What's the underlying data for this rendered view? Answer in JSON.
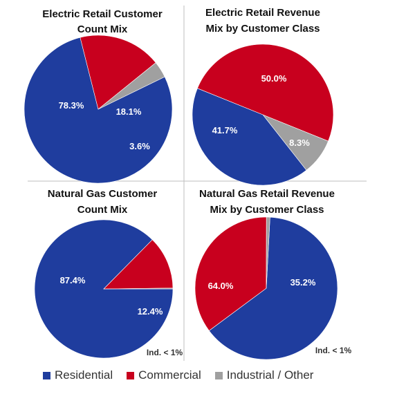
{
  "colors": {
    "residential": "#1F3D9E",
    "commercial": "#C8001E",
    "industrial": "#A0A0A0"
  },
  "legend": [
    {
      "label": "Residential",
      "color_key": "residential"
    },
    {
      "label": "Commercial",
      "color_key": "commercial"
    },
    {
      "label": "Industrial / Other",
      "color_key": "industrial"
    }
  ],
  "chart_data": [
    {
      "type": "pie",
      "title_lines": [
        "Electric Retail Customer",
        "Count Mix"
      ],
      "slices": [
        {
          "name": "Residential",
          "value": 78.3,
          "label": "78.3%",
          "color_key": "residential"
        },
        {
          "name": "Commercial",
          "value": 18.1,
          "label": "18.1%",
          "color_key": "commercial"
        },
        {
          "name": "Industrial / Other",
          "value": 3.6,
          "label": "3.6%",
          "color_key": "industrial"
        }
      ]
    },
    {
      "type": "pie",
      "title_lines": [
        "Electric Retail Revenue",
        "Mix by Customer Class"
      ],
      "slices": [
        {
          "name": "Commercial",
          "value": 50.0,
          "label": "50.0%",
          "color_key": "commercial"
        },
        {
          "name": "Industrial / Other",
          "value": 8.3,
          "label": "8.3%",
          "color_key": "industrial"
        },
        {
          "name": "Residential",
          "value": 41.7,
          "label": "41.7%",
          "color_key": "residential"
        }
      ]
    },
    {
      "type": "pie",
      "title_lines": [
        "Natural Gas Customer",
        "Count Mix"
      ],
      "slices": [
        {
          "name": "Residential",
          "value": 87.4,
          "label": "87.4%",
          "color_key": "residential"
        },
        {
          "name": "Commercial",
          "value": 12.4,
          "label": "12.4%",
          "color_key": "commercial"
        },
        {
          "name": "Industrial / Other",
          "value": 0.2,
          "label": "",
          "color_key": "industrial"
        }
      ],
      "note": "Ind. < 1%"
    },
    {
      "type": "pie",
      "title_lines": [
        "Natural Gas Retail Revenue",
        "Mix by Customer Class"
      ],
      "slices": [
        {
          "name": "Residential",
          "value": 64.0,
          "label": "64.0%",
          "color_key": "residential"
        },
        {
          "name": "Commercial",
          "value": 35.2,
          "label": "35.2%",
          "color_key": "commercial"
        },
        {
          "name": "Industrial / Other",
          "value": 0.8,
          "label": "",
          "color_key": "industrial"
        }
      ],
      "note": "Ind. < 1%"
    }
  ]
}
